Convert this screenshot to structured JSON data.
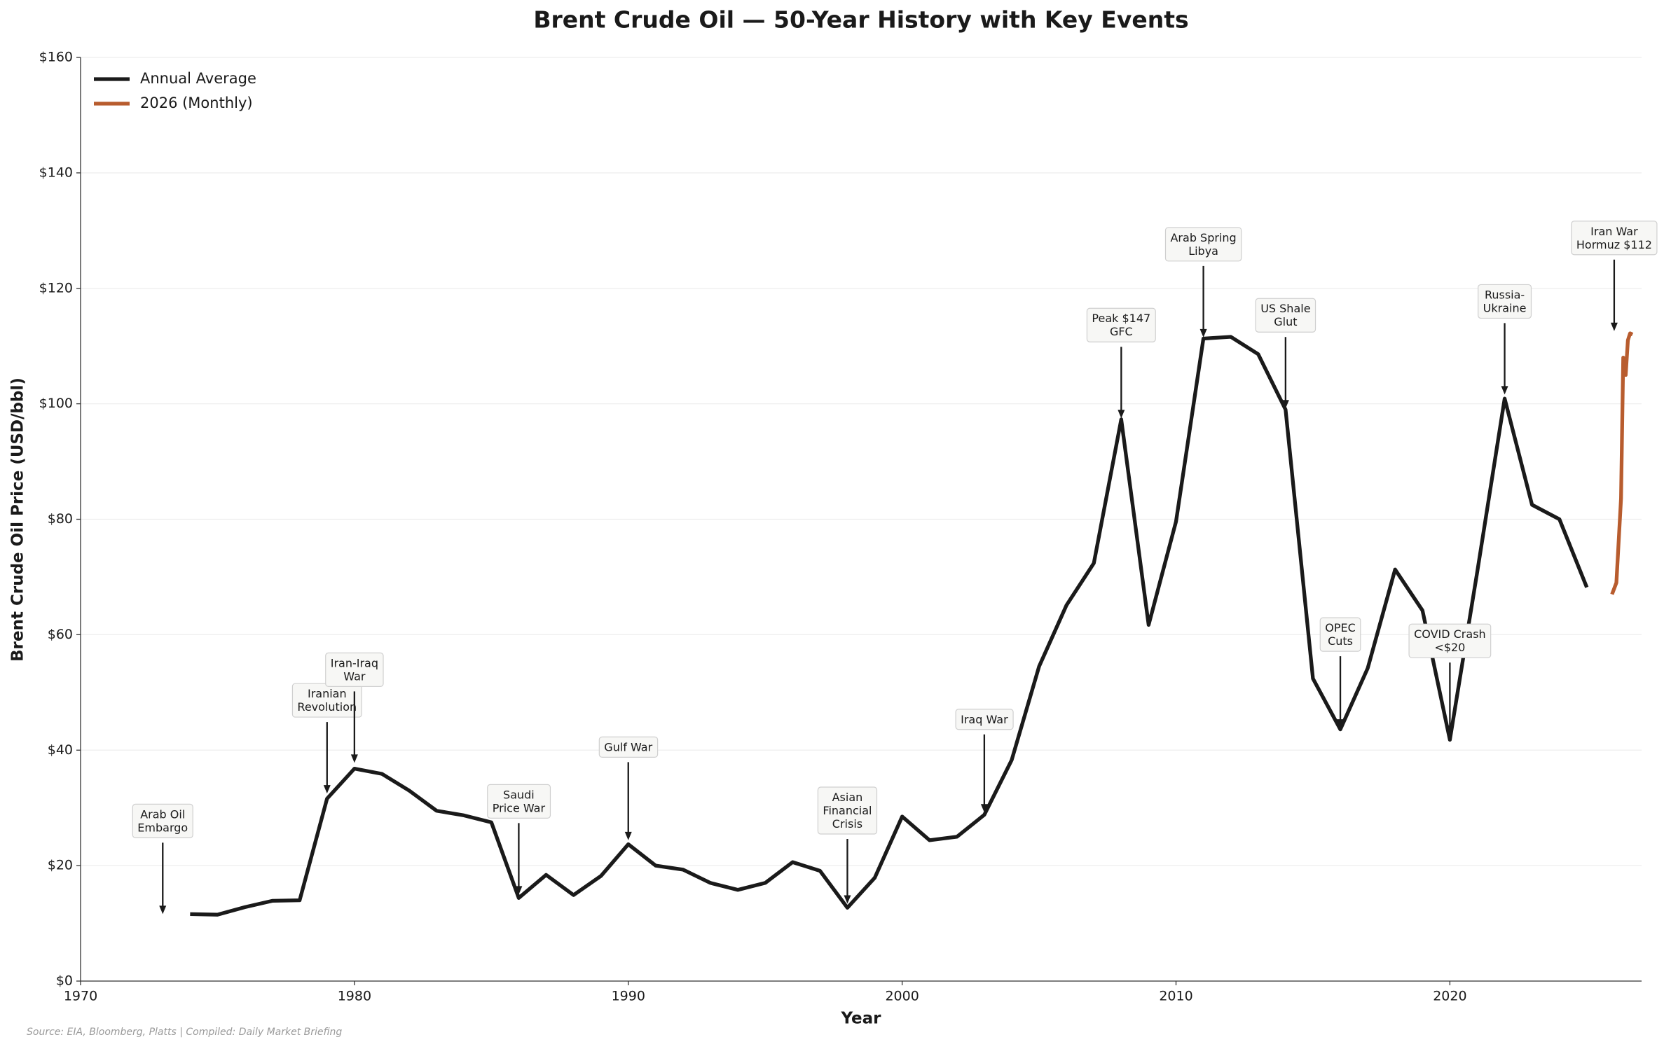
{
  "chart_data": {
    "type": "line",
    "title": "Brent Crude Oil — 50-Year History with Key Events",
    "x_label": "Year",
    "y_label": "Brent Crude Oil Price (USD/bbl)",
    "source": "Source: EIA, Bloomberg, Platts | Compiled: Daily Market Briefing",
    "xlim": [
      1970,
      2027
    ],
    "ylim": [
      0,
      160
    ],
    "xticks": [
      1970,
      1980,
      1990,
      2000,
      2010,
      2020
    ],
    "yticks": [
      {
        "value": 0,
        "label": "$0"
      },
      {
        "value": 20,
        "label": "$20"
      },
      {
        "value": 40,
        "label": "$40"
      },
      {
        "value": 60,
        "label": "$60"
      },
      {
        "value": 80,
        "label": "$80"
      },
      {
        "value": 100,
        "label": "$100"
      },
      {
        "value": 120,
        "label": "$120"
      },
      {
        "value": 140,
        "label": "$140"
      },
      {
        "value": 160,
        "label": "$160"
      }
    ],
    "grid": true,
    "legend": "upper left",
    "series": [
      {
        "name": "Annual Average",
        "color": "#1a1a1a",
        "x": [
          1974,
          1975,
          1976,
          1977,
          1978,
          1979,
          1980,
          1981,
          1982,
          1983,
          1984,
          1985,
          1986,
          1987,
          1988,
          1989,
          1990,
          1991,
          1992,
          1993,
          1994,
          1995,
          1996,
          1997,
          1998,
          1999,
          2000,
          2001,
          2002,
          2003,
          2004,
          2005,
          2006,
          2007,
          2008,
          2009,
          2010,
          2011,
          2012,
          2013,
          2014,
          2015,
          2016,
          2017,
          2018,
          2019,
          2020,
          2021,
          2022,
          2023,
          2024,
          2025
        ],
        "values": [
          11.6,
          11.5,
          12.8,
          13.9,
          14.0,
          31.6,
          36.8,
          35.9,
          33.0,
          29.5,
          28.7,
          27.5,
          14.4,
          18.4,
          14.9,
          18.2,
          23.7,
          20.0,
          19.3,
          17.0,
          15.8,
          17.0,
          20.6,
          19.1,
          12.7,
          17.9,
          28.5,
          24.4,
          25.0,
          28.8,
          38.3,
          54.5,
          65.1,
          72.4,
          97.3,
          61.7,
          79.6,
          111.3,
          111.6,
          108.6,
          99.0,
          52.4,
          43.6,
          54.2,
          71.3,
          64.2,
          41.8,
          70.9,
          100.9,
          82.5,
          80.0,
          68.2
        ]
      },
      {
        "name": "2026 (Monthly)",
        "color": "#b85c2e",
        "x": [
          2025.92,
          2026.08,
          2026.25,
          2026.33,
          2026.42,
          2026.5,
          2026.58,
          2026.67
        ],
        "values": [
          67.0,
          69.0,
          83.6,
          108.0,
          105.0,
          111.0,
          112.2,
          112.0
        ]
      }
    ],
    "annotations": [
      {
        "text": [
          "Arab Oil",
          "Embargo"
        ],
        "x": 1973,
        "y": 11.6
      },
      {
        "text": [
          "Iranian",
          "Revolution"
        ],
        "x": 1979,
        "y": 32.5
      },
      {
        "text": [
          "Iran-Iraq",
          "War"
        ],
        "x": 1980,
        "y": 37.8
      },
      {
        "text": [
          "Saudi",
          "Price War"
        ],
        "x": 1986,
        "y": 15.0
      },
      {
        "text": [
          "Gulf War"
        ],
        "x": 1990,
        "y": 24.4
      },
      {
        "text": [
          "Asian",
          "Financial",
          "Crisis"
        ],
        "x": 1998,
        "y": 13.4
      },
      {
        "text": [
          "Iraq War"
        ],
        "x": 2003,
        "y": 29.2
      },
      {
        "text": [
          "Peak $147",
          "GFC"
        ],
        "x": 2008,
        "y": 97.5
      },
      {
        "text": [
          "Arab Spring",
          "Libya"
        ],
        "x": 2011,
        "y": 111.5
      },
      {
        "text": [
          "US Shale",
          "Glut"
        ],
        "x": 2014,
        "y": 99.2
      },
      {
        "text": [
          "OPEC",
          "Cuts"
        ],
        "x": 2016,
        "y": 43.9
      },
      {
        "text": [
          "COVID Crash",
          "<$20"
        ],
        "x": 2020,
        "y": 42.8
      },
      {
        "text": [
          "Russia-",
          "Ukraine"
        ],
        "x": 2022,
        "y": 101.6
      },
      {
        "text": [
          "Iran War",
          "Hormuz $112"
        ],
        "x": 2026,
        "y": 112.6
      }
    ]
  }
}
